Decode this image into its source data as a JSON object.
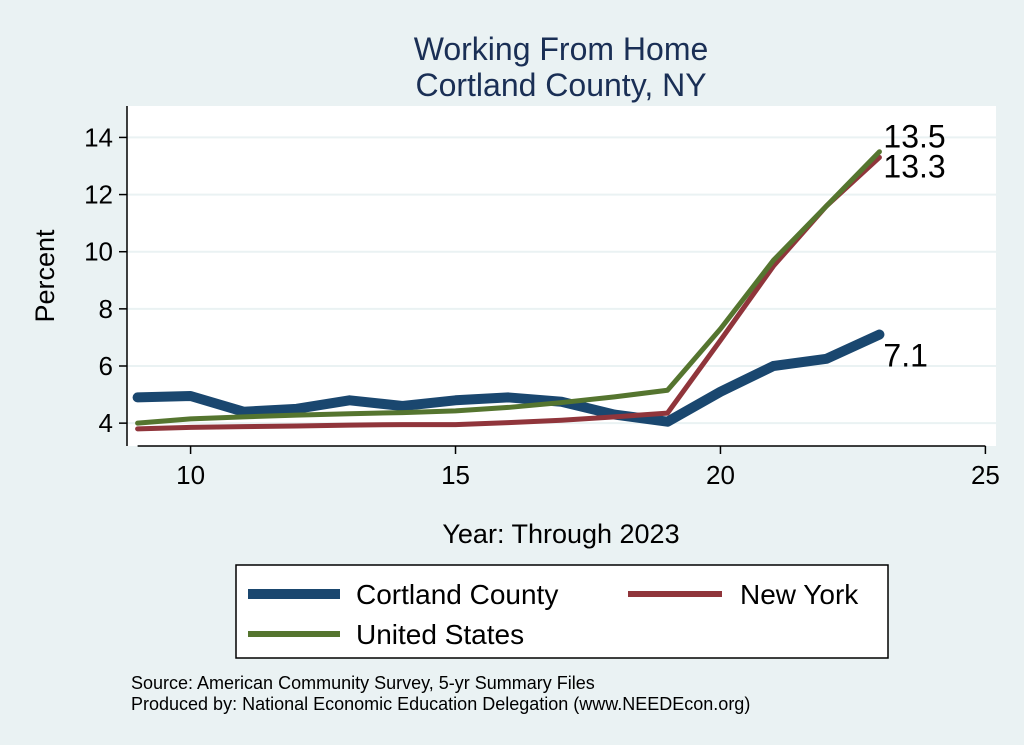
{
  "chart_data": {
    "type": "line",
    "title": [
      "Working From Home",
      "Cortland County, NY"
    ],
    "xlabel": "Year: Through 2023",
    "ylabel": "Percent",
    "xlim": [
      8.8,
      25.2
    ],
    "ylim": [
      3.2,
      15.1
    ],
    "xticks": [
      10,
      15,
      20,
      25
    ],
    "yticks": [
      4,
      6,
      8,
      10,
      12,
      14
    ],
    "grid": "horizontal",
    "legend_position": "bottom",
    "x": [
      9,
      10,
      11,
      12,
      13,
      14,
      15,
      16,
      17,
      18,
      19,
      20,
      21,
      22,
      23
    ],
    "series": [
      {
        "name": "Cortland County",
        "color": "#1a476f",
        "values": [
          4.9,
          4.95,
          4.4,
          4.5,
          4.8,
          4.6,
          4.8,
          4.9,
          4.75,
          4.3,
          4.05,
          5.1,
          6.0,
          6.25,
          7.1
        ],
        "end_label": "7.1"
      },
      {
        "name": "New York",
        "color": "#90353b",
        "values": [
          3.8,
          3.85,
          3.88,
          3.9,
          3.93,
          3.95,
          3.95,
          4.02,
          4.1,
          4.22,
          4.35,
          6.9,
          9.5,
          11.6,
          13.3
        ],
        "end_label": "13.3"
      },
      {
        "name": "United States",
        "color": "#55752f",
        "values": [
          4.0,
          4.15,
          4.22,
          4.28,
          4.33,
          4.37,
          4.43,
          4.55,
          4.72,
          4.92,
          5.15,
          7.3,
          9.7,
          11.6,
          13.5
        ],
        "end_label": "13.5"
      }
    ],
    "notes": [
      "Source: American Community Survey, 5-yr Summary Files",
      "Produced by: National Economic Education Delegation (www.NEEDEcon.org)"
    ]
  },
  "colors": {
    "background": "#eaf2f3",
    "plot_background": "#ffffff",
    "grid": "#eaf2f3",
    "title": "#1a2f55"
  }
}
